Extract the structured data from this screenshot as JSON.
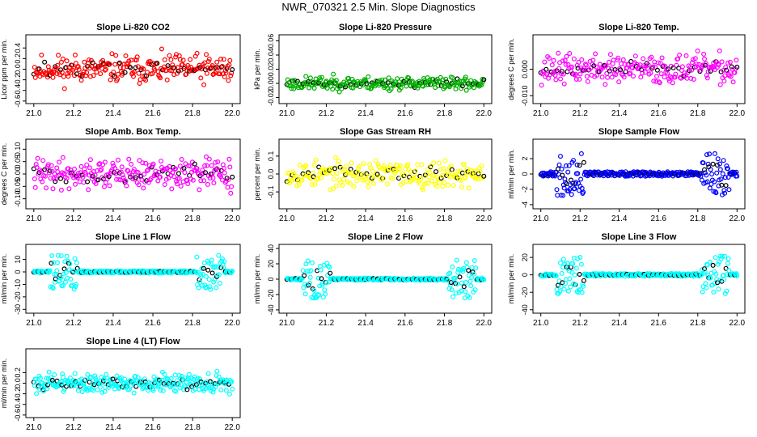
{
  "page": {
    "title": "NWR_070321  2.5 Min. Slope Diagnostics"
  },
  "x_tick_labels": [
    "21.0",
    "21.2",
    "21.4",
    "21.6",
    "21.8",
    "22.0"
  ],
  "chart_data": [
    {
      "type": "scatter",
      "title": "Slope Li-820 CO2",
      "ylabel": "Licor ppm per min.",
      "xlim": [
        21.0,
        22.0
      ],
      "ylim": [
        -0.6,
        0.6
      ],
      "ytick_values": [
        -0.6,
        -0.4,
        -0.2,
        0.0,
        0.2,
        0.4
      ],
      "ytick_labels": [
        "-0.6",
        "-0.4",
        "-0.2",
        "0.0",
        "0.2",
        "0.4"
      ],
      "color": "#ff0000",
      "pattern": "noise",
      "spread": 0.2,
      "n": 260,
      "seed": 11
    },
    {
      "type": "scatter",
      "title": "Slope Li-820 Pressure",
      "ylabel": "kPa per min.",
      "xlim": [
        21.0,
        22.0
      ],
      "ylim": [
        -0.025,
        0.065
      ],
      "ytick_values": [
        -0.02,
        0.0,
        0.02,
        0.04,
        0.06
      ],
      "ytick_labels": [
        "-0.02",
        "0.00",
        "0.02",
        "0.04",
        "0.06"
      ],
      "color": "#00b000",
      "pattern": "noise",
      "spread": 0.007,
      "n": 260,
      "seed": 23
    },
    {
      "type": "scatter",
      "title": "Slope Li-820 Temp.",
      "ylabel": "degrees C per min.",
      "xlim": [
        21.0,
        22.0
      ],
      "ylim": [
        -0.012,
        0.012
      ],
      "ytick_values": [
        -0.01,
        0.0
      ],
      "ytick_labels": [
        "-0.010",
        "0.000"
      ],
      "color": "#ff00ff",
      "pattern": "noise",
      "spread": 0.004,
      "n": 260,
      "seed": 37
    },
    {
      "type": "scatter",
      "title": "Slope Amb. Box Temp.",
      "ylabel": "degrees C per min.",
      "xlim": [
        21.0,
        22.0
      ],
      "ylim": [
        -0.13,
        0.13
      ],
      "ytick_values": [
        -0.1,
        -0.05,
        0.0,
        0.05,
        0.1
      ],
      "ytick_labels": [
        "-0.10",
        "-0.05",
        "0.00",
        "0.05",
        "0.10"
      ],
      "color": "#ff00ff",
      "pattern": "noise",
      "spread": 0.045,
      "n": 260,
      "seed": 41
    },
    {
      "type": "scatter",
      "title": "Slope Gas Stream RH",
      "ylabel": "percent per min.",
      "xlim": [
        21.0,
        22.0
      ],
      "ylim": [
        -0.18,
        0.18
      ],
      "ytick_values": [
        -0.1,
        0.0,
        0.1
      ],
      "ytick_labels": [
        "-0.1",
        "0.0",
        "0.1"
      ],
      "color": "#ffff00",
      "pattern": "noise",
      "spread": 0.055,
      "n": 260,
      "seed": 53
    },
    {
      "type": "scatter",
      "title": "Slope Sample Flow",
      "ylabel": "ml/min per min.",
      "xlim": [
        21.0,
        22.0
      ],
      "ylim": [
        -4.2,
        4.2
      ],
      "ytick_values": [
        -4,
        -2,
        0,
        2
      ],
      "ytick_labels": [
        "-4",
        "-2",
        "0",
        "2"
      ],
      "color": "#0000ff",
      "pattern": "spiky",
      "spread": 0.3,
      "spike": 2.8,
      "n": 320,
      "seed": 67
    },
    {
      "type": "scatter",
      "title": "Slope Line 1 Flow",
      "ylabel": "ml/min per min.",
      "xlim": [
        21.0,
        22.0
      ],
      "ylim": [
        -31,
        20
      ],
      "ytick_values": [
        -30,
        -20,
        -10,
        0,
        10
      ],
      "ytick_labels": [
        "-30",
        "-20",
        "-10",
        "0",
        "10"
      ],
      "color": "#00ffff",
      "pattern": "spiky",
      "spread": 1.0,
      "spike": 14,
      "n": 320,
      "seed": 71
    },
    {
      "type": "scatter",
      "title": "Slope Line 2 Flow",
      "ylabel": "ml/min per min.",
      "xlim": [
        21.0,
        22.0
      ],
      "ylim": [
        -41,
        42
      ],
      "ytick_values": [
        -40,
        -20,
        0,
        20,
        40
      ],
      "ytick_labels": [
        "-40",
        "-20",
        "0",
        "20",
        "40"
      ],
      "color": "#00ffff",
      "pattern": "spiky",
      "spread": 1.5,
      "spike": 25,
      "n": 320,
      "seed": 83
    },
    {
      "type": "scatter",
      "title": "Slope Line 3 Flow",
      "ylabel": "ml/min per min.",
      "xlim": [
        21.0,
        22.0
      ],
      "ylim": [
        -41,
        32
      ],
      "ytick_values": [
        -40,
        -20,
        0,
        20
      ],
      "ytick_labels": [
        "-40",
        "-20",
        "0",
        "20"
      ],
      "color": "#00ffff",
      "pattern": "spiky",
      "spread": 1.5,
      "spike": 22,
      "n": 320,
      "seed": 97
    },
    {
      "type": "scatter",
      "title": "Slope Line 4 (LT) Flow",
      "ylabel": "ml/min per min.",
      "xlim": [
        21.0,
        22.0
      ],
      "ylim": [
        -0.6,
        0.6
      ],
      "ytick_values": [
        -0.6,
        -0.4,
        -0.2,
        0.0,
        0.2
      ],
      "ytick_labels": [
        "-0.6",
        "-0.4",
        "-0.2",
        "0.0",
        "0.2"
      ],
      "color": "#00ffff",
      "pattern": "noise",
      "spread": 0.13,
      "n": 300,
      "seed": 101
    }
  ]
}
